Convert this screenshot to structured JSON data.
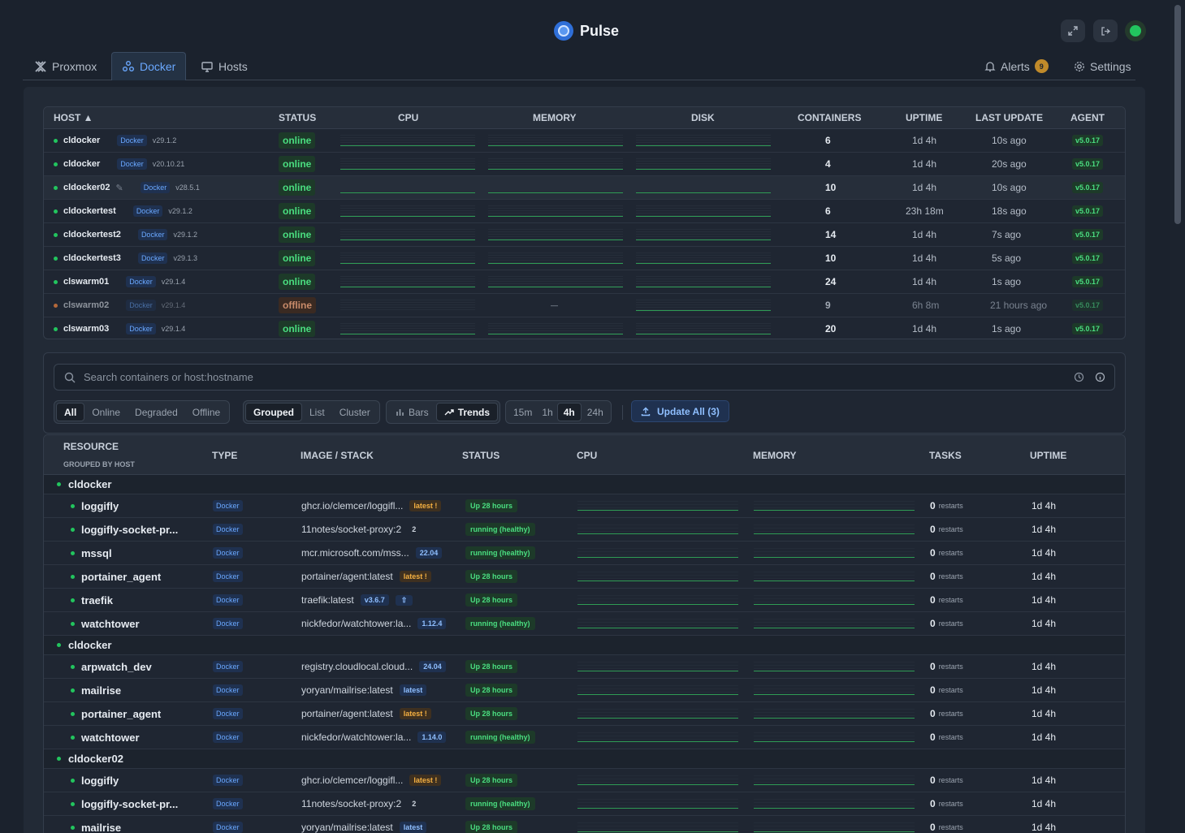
{
  "app": {
    "title": "Pulse"
  },
  "tabs": [
    {
      "label": "Proxmox",
      "icon": "proxmox-icon"
    },
    {
      "label": "Docker",
      "icon": "docker-icon"
    },
    {
      "label": "Hosts",
      "icon": "monitor-icon"
    }
  ],
  "right_tabs": {
    "alerts_label": "Alerts",
    "alerts_count": "9",
    "settings_label": "Settings"
  },
  "colors": {
    "accent": "#6aa8ff",
    "online": "#4ade80",
    "offline": "#c98b6a",
    "warning": "#f5b041"
  },
  "host_table": {
    "headers": [
      "HOST ▲",
      "STATUS",
      "CPU",
      "MEMORY",
      "DISK",
      "CONTAINERS",
      "UPTIME",
      "LAST UPDATE",
      "AGENT"
    ],
    "rows": [
      {
        "name": "cldocker",
        "runtime": "Docker",
        "version": "v29.1.2",
        "status": "online",
        "containers": "6",
        "uptime": "1d 4h",
        "last_update": "10s ago",
        "agent": "v5.0.17"
      },
      {
        "name": "cldocker",
        "runtime": "Docker",
        "version": "v20.10.21",
        "status": "online",
        "containers": "4",
        "uptime": "1d 4h",
        "last_update": "20s ago",
        "agent": "v5.0.17"
      },
      {
        "name": "cldocker02",
        "runtime": "Docker",
        "version": "v28.5.1",
        "status": "online",
        "containers": "10",
        "uptime": "1d 4h",
        "last_update": "10s ago",
        "agent": "v5.0.17"
      },
      {
        "name": "cldockertest",
        "runtime": "Docker",
        "version": "v29.1.2",
        "status": "online",
        "containers": "6",
        "uptime": "23h 18m",
        "last_update": "18s ago",
        "agent": "v5.0.17"
      },
      {
        "name": "cldockertest2",
        "runtime": "Docker",
        "version": "v29.1.2",
        "status": "online",
        "containers": "14",
        "uptime": "1d 4h",
        "last_update": "7s ago",
        "agent": "v5.0.17"
      },
      {
        "name": "cldockertest3",
        "runtime": "Docker",
        "version": "v29.1.3",
        "status": "online",
        "containers": "10",
        "uptime": "1d 4h",
        "last_update": "5s ago",
        "agent": "v5.0.17"
      },
      {
        "name": "clswarm01",
        "runtime": "Docker",
        "version": "v29.1.4",
        "status": "online",
        "containers": "24",
        "uptime": "1d 4h",
        "last_update": "1s ago",
        "agent": "v5.0.17"
      },
      {
        "name": "clswarm02",
        "runtime": "Docker",
        "version": "v29.1.4",
        "status": "offline",
        "containers": "9",
        "uptime": "6h 8m",
        "last_update": "21 hours ago",
        "agent": "v5.0.17",
        "memory_text": "—"
      },
      {
        "name": "clswarm03",
        "runtime": "Docker",
        "version": "v29.1.4",
        "status": "online",
        "containers": "20",
        "uptime": "1d 4h",
        "last_update": "1s ago",
        "agent": "v5.0.17"
      }
    ]
  },
  "controls": {
    "search_placeholder": "Search containers or host:hostname",
    "status_filters": [
      "All",
      "Online",
      "Degraded",
      "Offline"
    ],
    "status_selected": "All",
    "views": [
      "Grouped",
      "List",
      "Cluster"
    ],
    "view_selected": "Grouped",
    "chart_modes": [
      "Bars",
      "Trends"
    ],
    "chart_selected": "Trends",
    "ranges": [
      "15m",
      "1h",
      "4h",
      "24h"
    ],
    "range_selected": "4h",
    "update_all_label": "Update All (3)"
  },
  "resource_table": {
    "headers": {
      "resource": "RESOURCE",
      "resource_sub": "GROUPED BY HOST",
      "type": "TYPE",
      "image": "IMAGE / STACK",
      "status": "STATUS",
      "cpu": "CPU",
      "memory": "MEMORY",
      "tasks": "TASKS",
      "uptime": "UPTIME"
    },
    "restarts_label": "restarts",
    "groups": [
      {
        "host": "cldocker",
        "items": [
          {
            "name": "loggifly",
            "type": "Docker",
            "image": "ghcr.io/clemcer/loggifl...",
            "tag": "latest !",
            "tag_style": "warn",
            "status": "Up 28 hours",
            "restarts": "0",
            "uptime": "1d 4h"
          },
          {
            "name": "loggifly-socket-pr...",
            "type": "Docker",
            "image": "11notes/socket-proxy:2",
            "tag": "2",
            "tag_style": "plain",
            "status": "running (healthy)",
            "restarts": "0",
            "uptime": "1d 4h"
          },
          {
            "name": "mssql",
            "type": "Docker",
            "image": "mcr.microsoft.com/mss...",
            "tag": "22.04",
            "tag_style": "blue",
            "status": "running (healthy)",
            "restarts": "0",
            "uptime": "1d 4h"
          },
          {
            "name": "portainer_agent",
            "type": "Docker",
            "image": "portainer/agent:latest",
            "tag": "latest !",
            "tag_style": "warn",
            "status": "Up 28 hours",
            "restarts": "0",
            "uptime": "1d 4h"
          },
          {
            "name": "traefik",
            "type": "Docker",
            "image": "traefik:latest",
            "tag": "v3.6.7",
            "tag_style": "blue",
            "extra_icon": "upload-icon",
            "status": "Up 28 hours",
            "restarts": "0",
            "uptime": "1d 4h"
          },
          {
            "name": "watchtower",
            "type": "Docker",
            "image": "nickfedor/watchtower:la...",
            "tag": "1.12.4",
            "tag_style": "blue",
            "status": "running (healthy)",
            "restarts": "0",
            "uptime": "1d 4h"
          }
        ]
      },
      {
        "host": "cldocker",
        "items": [
          {
            "name": "arpwatch_dev",
            "type": "Docker",
            "image": "registry.cloudlocal.cloud...",
            "tag": "24.04",
            "tag_style": "blue",
            "status": "Up 28 hours",
            "restarts": "0",
            "uptime": "1d 4h"
          },
          {
            "name": "mailrise",
            "type": "Docker",
            "image": "yoryan/mailrise:latest",
            "tag": "latest",
            "tag_style": "blue",
            "status": "Up 28 hours",
            "restarts": "0",
            "uptime": "1d 4h"
          },
          {
            "name": "portainer_agent",
            "type": "Docker",
            "image": "portainer/agent:latest",
            "tag": "latest !",
            "tag_style": "warn",
            "status": "Up 28 hours",
            "restarts": "0",
            "uptime": "1d 4h"
          },
          {
            "name": "watchtower",
            "type": "Docker",
            "image": "nickfedor/watchtower:la...",
            "tag": "1.14.0",
            "tag_style": "blue",
            "status": "running (healthy)",
            "restarts": "0",
            "uptime": "1d 4h"
          }
        ]
      },
      {
        "host": "cldocker02",
        "items": [
          {
            "name": "loggifly",
            "type": "Docker",
            "image": "ghcr.io/clemcer/loggifl...",
            "tag": "latest !",
            "tag_style": "warn",
            "status": "Up 28 hours",
            "restarts": "0",
            "uptime": "1d 4h"
          },
          {
            "name": "loggifly-socket-pr...",
            "type": "Docker",
            "image": "11notes/socket-proxy:2",
            "tag": "2",
            "tag_style": "plain",
            "status": "running (healthy)",
            "restarts": "0",
            "uptime": "1d 4h"
          },
          {
            "name": "mailrise",
            "type": "Docker",
            "image": "yoryan/mailrise:latest",
            "tag": "latest",
            "tag_style": "blue",
            "status": "Up 28 hours",
            "restarts": "0",
            "uptime": "1d 4h"
          }
        ]
      }
    ]
  }
}
